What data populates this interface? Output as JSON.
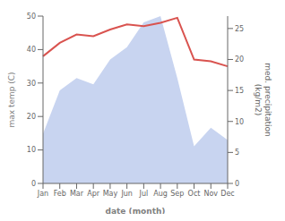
{
  "chart_data": {
    "type": "line",
    "categories": [
      "Jan",
      "Feb",
      "Mar",
      "Apr",
      "May",
      "Jun",
      "Jul",
      "Aug",
      "Sep",
      "Oct",
      "Nov",
      "Dec"
    ],
    "xlabel": "date (month)",
    "ylabel": "max temp (C)",
    "y2label": "med. precipitation\n(kg/m2)",
    "ylim": [
      0,
      50
    ],
    "yticks": [
      0,
      10,
      20,
      30,
      40,
      50
    ],
    "y2lim": [
      0,
      27
    ],
    "y2ticks": [
      0,
      5,
      10,
      15,
      20,
      25
    ],
    "series": [
      {
        "type": "area",
        "axis": "y2",
        "color": "#c8d4f0",
        "values": [
          8,
          15,
          17,
          16,
          20,
          22,
          26,
          27,
          17,
          6,
          9,
          7
        ]
      },
      {
        "type": "line",
        "axis": "y",
        "color": "#d9534f",
        "values": [
          38,
          42,
          44.5,
          44,
          46,
          47.5,
          47,
          48,
          49.5,
          37,
          36.5,
          35
        ]
      }
    ]
  }
}
